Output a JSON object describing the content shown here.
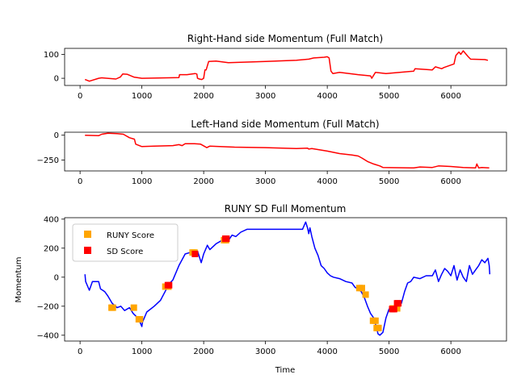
{
  "chart_data": [
    {
      "type": "line",
      "title": "Right-Hand side Momentum (Full Match)",
      "xlabel": "",
      "ylabel": "",
      "xlim": [
        -250,
        6900
      ],
      "ylim": [
        -30,
        125
      ],
      "xticks": [
        0,
        1000,
        2000,
        3000,
        4000,
        5000,
        6000
      ],
      "yticks": [
        0,
        100
      ],
      "grid": false,
      "series": [
        {
          "color": "#ff0000",
          "x": [
            80,
            150,
            300,
            350,
            580,
            650,
            690,
            760,
            870,
            1000,
            1600,
            1610,
            1730,
            1860,
            1890,
            1900,
            1930,
            1970,
            2000,
            2020,
            2040,
            2080,
            2200,
            2400,
            3000,
            3500,
            3700,
            3780,
            3950,
            4000,
            4030,
            4060,
            4090,
            4200,
            4500,
            4700,
            4720,
            4780,
            4950,
            5400,
            5420,
            5700,
            5750,
            5850,
            5890,
            6050,
            6080,
            6130,
            6160,
            6200,
            6280,
            6320,
            6550,
            6600
          ],
          "y": [
            -5,
            -12,
            0,
            2,
            -3,
            5,
            18,
            17,
            5,
            0,
            3,
            15,
            15,
            20,
            18,
            0,
            -3,
            -5,
            0,
            35,
            35,
            70,
            72,
            65,
            70,
            75,
            80,
            85,
            88,
            90,
            85,
            30,
            20,
            25,
            15,
            10,
            0,
            25,
            20,
            30,
            40,
            35,
            48,
            40,
            45,
            60,
            95,
            110,
            100,
            115,
            90,
            80,
            78,
            75
          ]
        }
      ]
    },
    {
      "type": "line",
      "title": "Left-Hand side Momentum (Full Match)",
      "xlabel": "",
      "ylabel": "",
      "xlim": [
        -250,
        6900
      ],
      "ylim": [
        -360,
        30
      ],
      "xticks": [
        0,
        1000,
        2000,
        3000,
        4000,
        5000,
        6000
      ],
      "yticks": [
        0,
        -250
      ],
      "grid": false,
      "series": [
        {
          "color": "#ff0000",
          "x": [
            80,
            300,
            350,
            450,
            600,
            700,
            800,
            880,
            900,
            1000,
            1200,
            1500,
            1600,
            1650,
            1700,
            1850,
            1950,
            2050,
            2100,
            2500,
            3000,
            3500,
            3680,
            3700,
            3750,
            4000,
            4200,
            4400,
            4500,
            4560,
            4650,
            4750,
            4850,
            4900,
            5400,
            5500,
            5700,
            5800,
            6000,
            6200,
            6400,
            6420,
            6450,
            6500,
            6620
          ],
          "y": [
            0,
            -5,
            10,
            20,
            15,
            10,
            -25,
            -40,
            -90,
            -115,
            -110,
            -105,
            -95,
            -105,
            -85,
            -85,
            -90,
            -125,
            -110,
            -120,
            -125,
            -135,
            -130,
            -140,
            -135,
            -160,
            -185,
            -200,
            -210,
            -230,
            -265,
            -290,
            -310,
            -325,
            -330,
            -320,
            -325,
            -310,
            -315,
            -325,
            -330,
            -290,
            -330,
            -325,
            -330
          ]
        }
      ]
    },
    {
      "type": "line",
      "title": "RUNY SD Full Momentum",
      "xlabel": "Time",
      "ylabel": "Momentum",
      "xlim": [
        -250,
        6900
      ],
      "ylim": [
        -440,
        410
      ],
      "xticks": [
        0,
        1000,
        2000,
        3000,
        4000,
        5000,
        6000
      ],
      "yticks": [
        400,
        200,
        0,
        -200,
        -400
      ],
      "grid": false,
      "legend": "upper-left",
      "series": [
        {
          "color": "#0000ff",
          "x": [
            80,
            90,
            150,
            200,
            300,
            330,
            400,
            450,
            520,
            600,
            660,
            720,
            800,
            860,
            930,
            960,
            1000,
            1010,
            1080,
            1200,
            1300,
            1400,
            1430,
            1500,
            1560,
            1600,
            1700,
            1780,
            1850,
            1900,
            1960,
            2000,
            2060,
            2100,
            2200,
            2280,
            2320,
            2380,
            2460,
            2520,
            2600,
            2700,
            3000,
            3300,
            3600,
            3630,
            3650,
            3680,
            3700,
            3720,
            3750,
            3800,
            3850,
            3900,
            3950,
            4000,
            4050,
            4100,
            4200,
            4300,
            4400,
            4450,
            4500,
            4550,
            4600,
            4650,
            4700,
            4750,
            4800,
            4820,
            4850,
            4900,
            4950,
            5000,
            5050,
            5100,
            5150,
            5200,
            5250,
            5300,
            5350,
            5400,
            5500,
            5600,
            5700,
            5750,
            5800,
            5850,
            5900,
            5950,
            6000,
            6050,
            6100,
            6150,
            6200,
            6250,
            6300,
            6350,
            6400,
            6450,
            6500,
            6550,
            6600,
            6620,
            6630
          ],
          "y": [
            20,
            -30,
            -90,
            -30,
            -30,
            -80,
            -100,
            -130,
            -180,
            -210,
            -200,
            -230,
            -210,
            -250,
            -280,
            -300,
            -340,
            -310,
            -240,
            -200,
            -160,
            -80,
            -50,
            -20,
            40,
            80,
            160,
            170,
            150,
            180,
            100,
            160,
            220,
            190,
            230,
            250,
            270,
            240,
            290,
            280,
            310,
            330,
            330,
            330,
            330,
            360,
            380,
            340,
            300,
            340,
            280,
            200,
            150,
            80,
            60,
            30,
            10,
            0,
            -10,
            -30,
            -40,
            -70,
            -80,
            -100,
            -140,
            -200,
            -250,
            -280,
            -350,
            -390,
            -400,
            -380,
            -280,
            -220,
            -230,
            -190,
            -170,
            -180,
            -100,
            -40,
            -30,
            0,
            -10,
            10,
            10,
            50,
            -30,
            20,
            60,
            40,
            10,
            80,
            -20,
            50,
            0,
            -30,
            80,
            20,
            50,
            80,
            120,
            100,
            130,
            80,
            20
          ]
        }
      ],
      "markers": [
        {
          "name": "RUNY Score",
          "color": "#ffa500",
          "x": [
            510,
            530,
            870,
            950,
            970,
            1380,
            1430,
            1820,
            1850,
            2330,
            2360,
            4520,
            4560,
            4620,
            4740,
            4780,
            4800,
            4830,
            5060,
            5080,
            5110,
            5130
          ],
          "y": [
            -210,
            -210,
            -210,
            -290,
            -290,
            -65,
            -65,
            170,
            170,
            255,
            255,
            -75,
            -75,
            -120,
            -300,
            -300,
            -350,
            -350,
            -215,
            -215,
            -215,
            -215
          ]
        },
        {
          "name": "SD Score",
          "color": "#ff0000",
          "x": [
            1420,
            1440,
            1860,
            2350,
            2370,
            5050,
            5080,
            5130,
            5150
          ],
          "y": [
            -55,
            -55,
            160,
            265,
            265,
            -220,
            -220,
            -180,
            -180
          ]
        }
      ]
    }
  ]
}
